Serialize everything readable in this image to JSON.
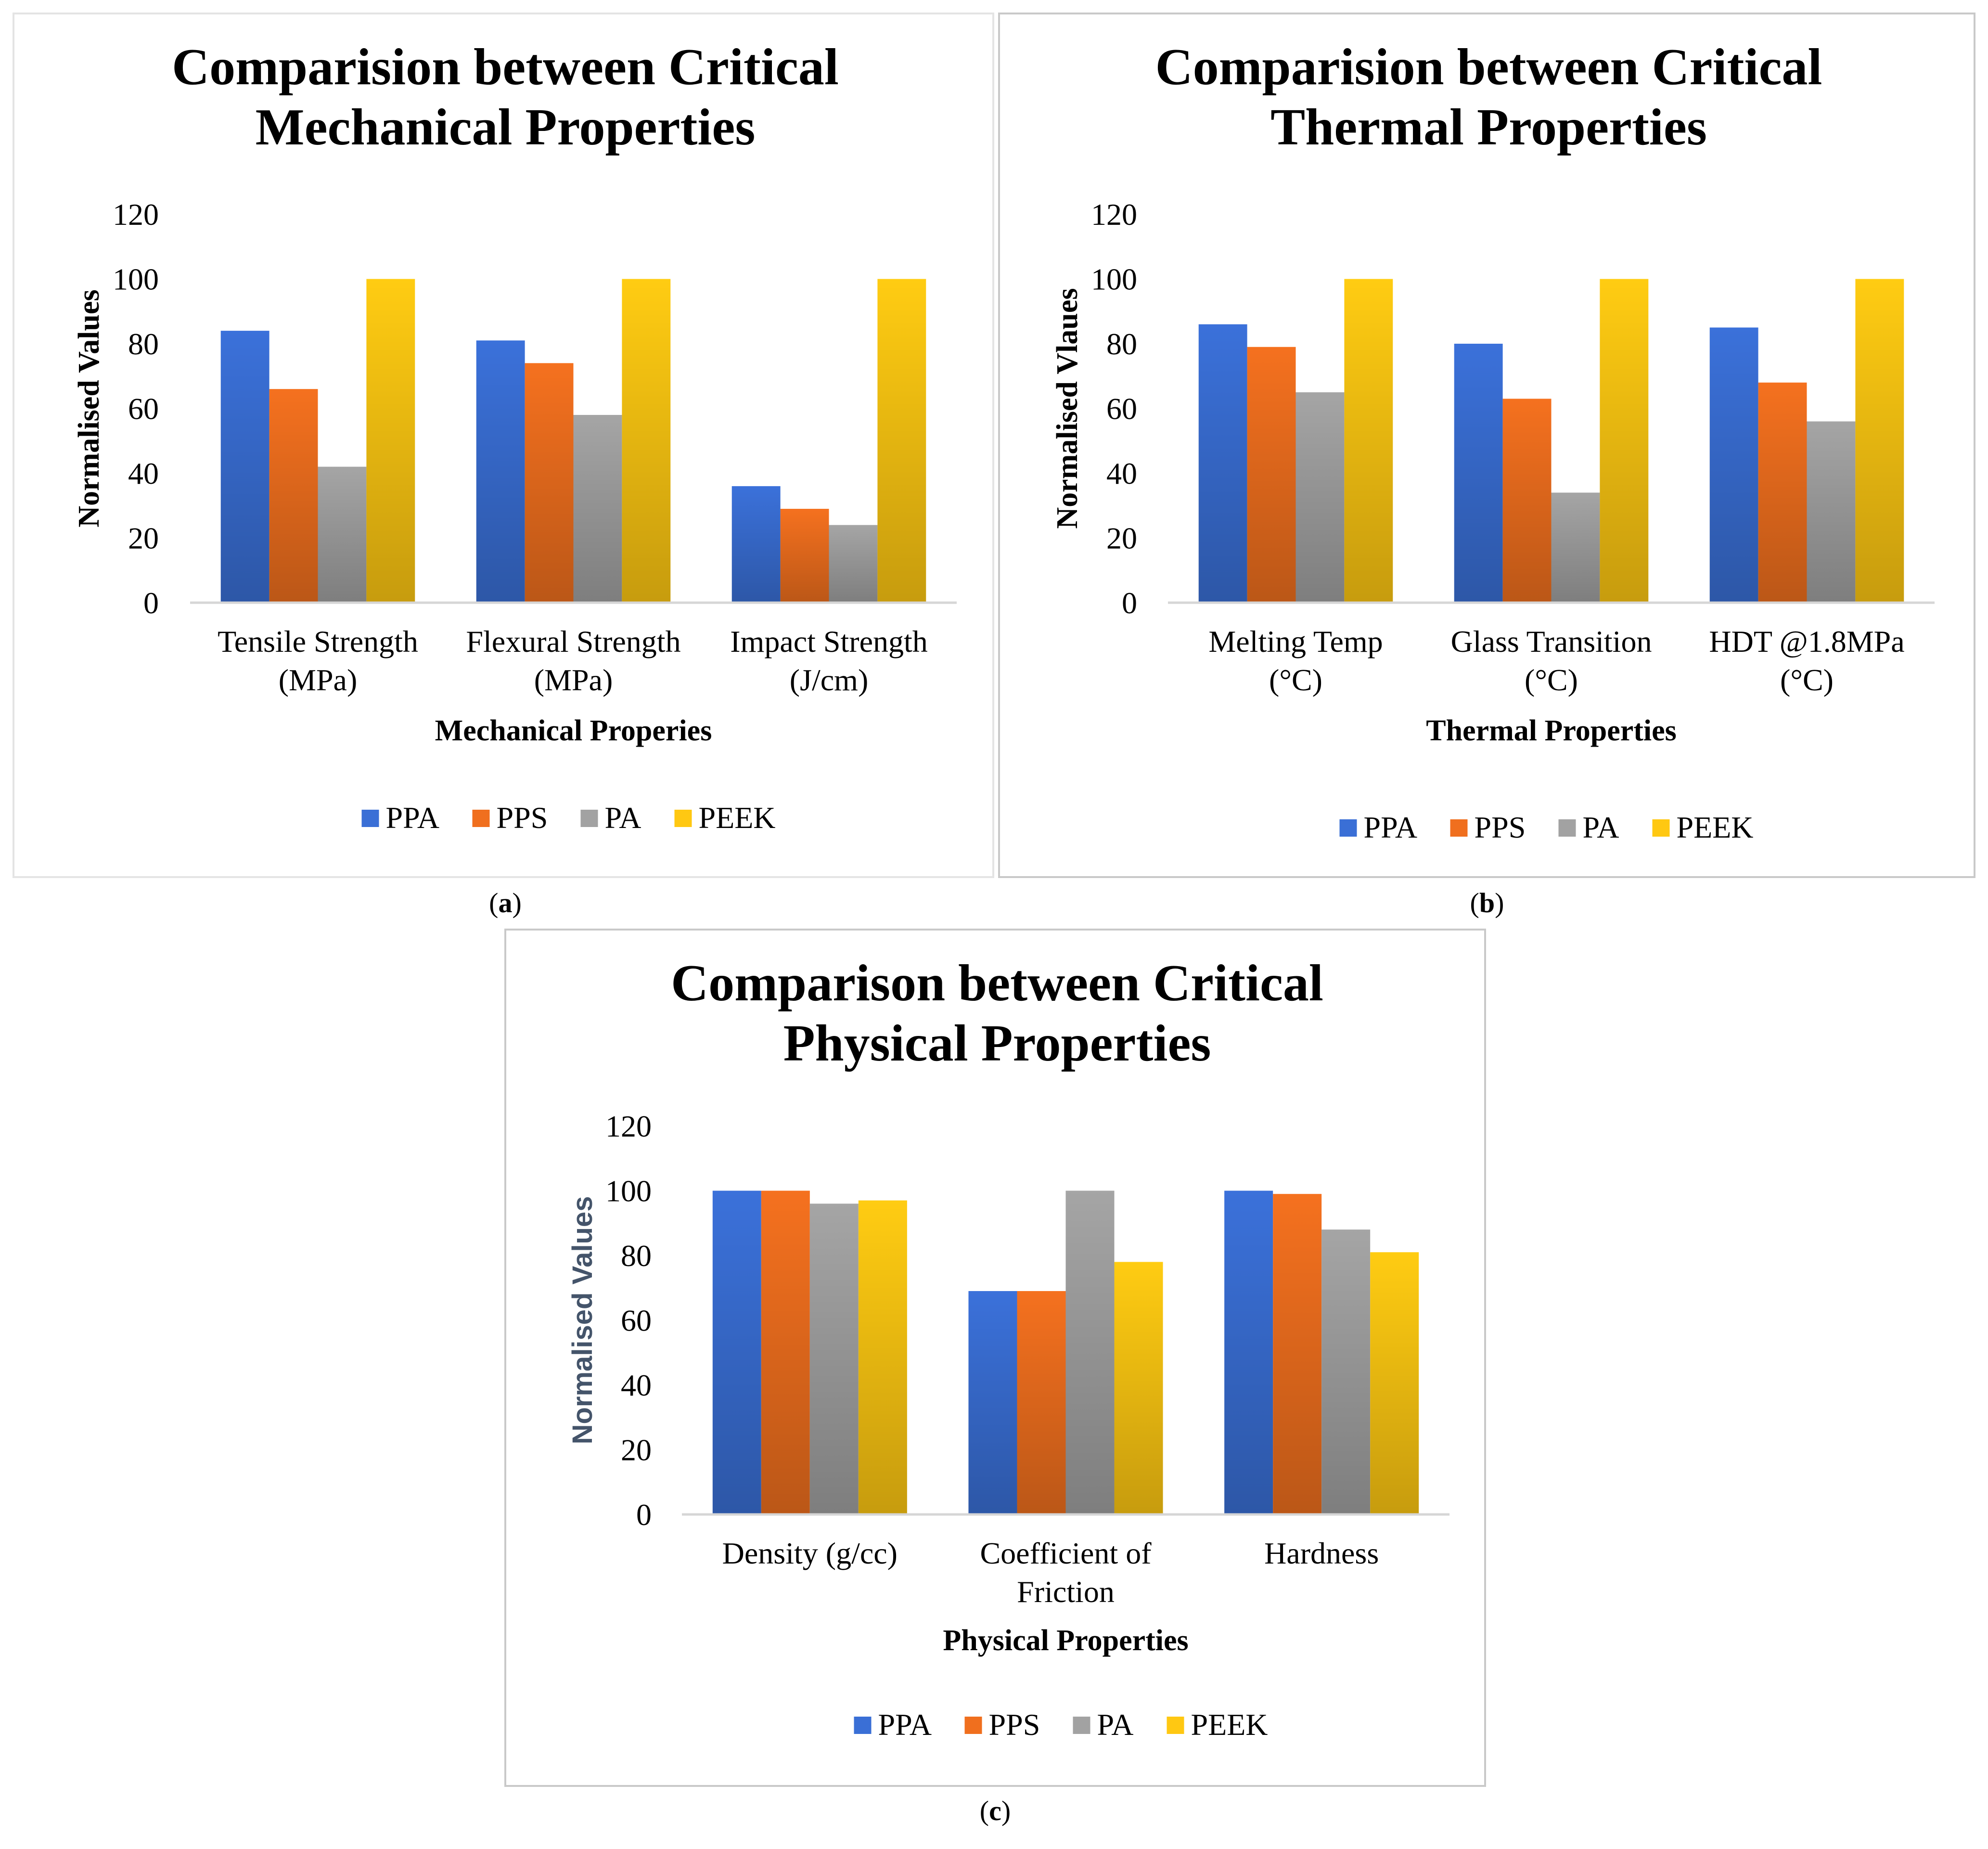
{
  "series_names": [
    "PPA",
    "PPS",
    "PA",
    "PEEK"
  ],
  "colors": {
    "PPA": "#3a6fd6",
    "PPS": "#f06f1e",
    "PA": "#a2a2a2",
    "PEEK": "#ffc812",
    "border": "#d0d0d0",
    "axis": "#d6d6d6"
  },
  "panel_labels": {
    "a": "a",
    "b": "b",
    "c": "c"
  },
  "chart_data": [
    {
      "type": "bar",
      "title": "Comparision between Critical Mechanical Properties",
      "title_lines": [
        "Comparision between Critical",
        "Mechanical Properties"
      ],
      "xlabel": "Mechanical Properies",
      "ylabel": "Normalised Values",
      "ylim": [
        0,
        120
      ],
      "yticks": [
        "0",
        "20",
        "40",
        "60",
        "80",
        "100",
        "120"
      ],
      "categories": [
        "Tensile Strength (MPa)",
        "Flexural Strength (MPa)",
        "Impact Strength (J/cm)"
      ],
      "category_lines": [
        [
          "Tensile Strength",
          "(MPa)"
        ],
        [
          "Flexural Strength",
          "(MPa)"
        ],
        [
          "Impact Strength",
          "(J/cm)"
        ]
      ],
      "series": [
        {
          "name": "PPA",
          "values": [
            84,
            81,
            36
          ]
        },
        {
          "name": "PPS",
          "values": [
            66,
            74,
            29
          ]
        },
        {
          "name": "PA",
          "values": [
            42,
            58,
            24
          ]
        },
        {
          "name": "PEEK",
          "values": [
            100,
            100,
            100
          ]
        }
      ],
      "legend": "bottom"
    },
    {
      "type": "bar",
      "title": "Comparision between Critical Thermal Properties",
      "title_lines": [
        "Comparision between Critical",
        "Thermal Properties"
      ],
      "xlabel": "Thermal Properties",
      "ylabel": "Normalised Vlaues",
      "ylim": [
        0,
        120
      ],
      "yticks": [
        "0",
        "20",
        "40",
        "60",
        "80",
        "100",
        "120"
      ],
      "categories": [
        "Melting Temp (°C)",
        "Glass Transition (°C)",
        "HDT @1.8MPa (°C)"
      ],
      "category_lines": [
        [
          "Melting Temp",
          "(°C)"
        ],
        [
          "Glass Transition",
          "(°C)"
        ],
        [
          "HDT @1.8MPa",
          "(°C)"
        ]
      ],
      "series": [
        {
          "name": "PPA",
          "values": [
            86,
            80,
            85
          ]
        },
        {
          "name": "PPS",
          "values": [
            79,
            63,
            68
          ]
        },
        {
          "name": "PA",
          "values": [
            65,
            34,
            56
          ]
        },
        {
          "name": "PEEK",
          "values": [
            100,
            100,
            100
          ]
        }
      ],
      "legend": "bottom"
    },
    {
      "type": "bar",
      "title": "Comparison between Critical Physical Properties",
      "title_lines": [
        "Comparison between Critical",
        "Physical Properties"
      ],
      "xlabel": "Physical Properties",
      "ylabel": "Normalised Values",
      "ylim": [
        0,
        120
      ],
      "yticks": [
        "0",
        "20",
        "40",
        "60",
        "80",
        "100",
        "120"
      ],
      "categories": [
        "Density (g/cc)",
        "Coefficient of Friction",
        "Hardness"
      ],
      "category_lines": [
        [
          "Density (g/cc)"
        ],
        [
          "Coefficient of",
          "Friction"
        ],
        [
          "Hardness"
        ]
      ],
      "series": [
        {
          "name": "PPA",
          "values": [
            100,
            69,
            100
          ]
        },
        {
          "name": "PPS",
          "values": [
            100,
            69,
            99
          ]
        },
        {
          "name": "PA",
          "values": [
            96,
            100,
            88
          ]
        },
        {
          "name": "PEEK",
          "values": [
            97,
            78,
            81
          ]
        }
      ],
      "legend": "bottom"
    }
  ]
}
